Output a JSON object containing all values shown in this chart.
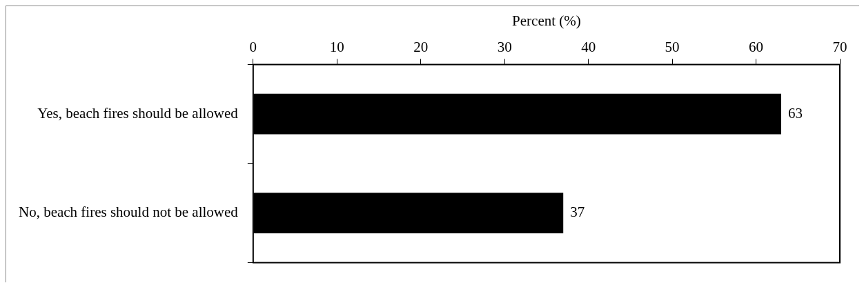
{
  "chart_data": {
    "type": "bar",
    "orientation": "horizontal",
    "xlabel": "Percent (%)",
    "categories": [
      "Yes, beach fires should be allowed",
      "No, beach fires should not be allowed"
    ],
    "values": [
      63,
      37
    ],
    "color": "#000000",
    "xlim": [
      0,
      70
    ],
    "xticks": [
      0,
      10,
      20,
      30,
      40,
      50,
      60,
      70
    ],
    "grid": false,
    "legend": false,
    "data_labels": true
  }
}
